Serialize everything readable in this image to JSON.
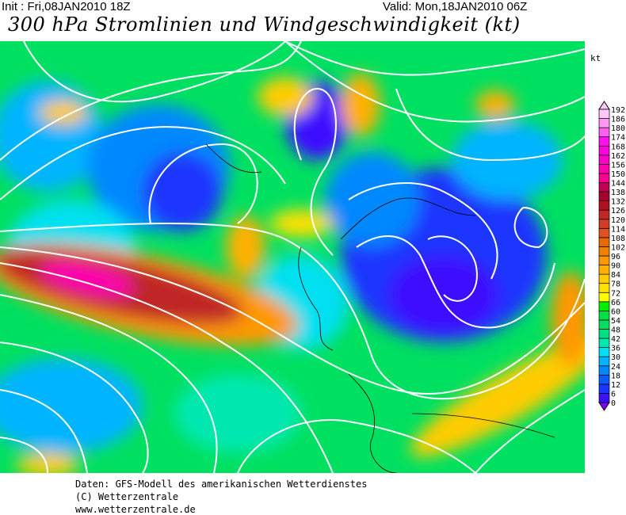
{
  "header": {
    "init": "Init : Fri,08JAN2010 18Z",
    "valid": "Valid: Mon,18JAN2010 06Z",
    "title": "300 hPa Stromlinien und Windgeschwindigkeit (kt)"
  },
  "legend": {
    "unit": "kt",
    "levels": [
      0,
      6,
      12,
      18,
      24,
      30,
      36,
      42,
      48,
      54,
      60,
      66,
      72,
      78,
      84,
      90,
      96,
      102,
      108,
      114,
      120,
      126,
      132,
      138,
      144,
      150,
      156,
      162,
      168,
      174,
      180,
      186,
      192
    ],
    "colors": [
      "#7a00ff",
      "#3c10ff",
      "#1c34ff",
      "#0a5cff",
      "#0088ff",
      "#00b4ff",
      "#00e0f0",
      "#00e8b0",
      "#00e080",
      "#00e060",
      "#00e040",
      "#00f000",
      "#ffff00",
      "#ffe000",
      "#ffcc00",
      "#ffb000",
      "#ff9800",
      "#f08000",
      "#e86a00",
      "#e05020",
      "#d03c24",
      "#c02828",
      "#b01020",
      "#a8002c",
      "#c00050",
      "#ff0090",
      "#ff00b0",
      "#ff00c8",
      "#ff00e0",
      "#ff10f0",
      "#ff60f0",
      "#ff98f0",
      "#ffc8f8"
    ]
  },
  "footer": {
    "line1": "Daten: GFS-Modell des amerikanischen Wetterdienstes",
    "line2": "(C) Wetterzentrale",
    "line3": "www.wetterzentrale.de"
  }
}
